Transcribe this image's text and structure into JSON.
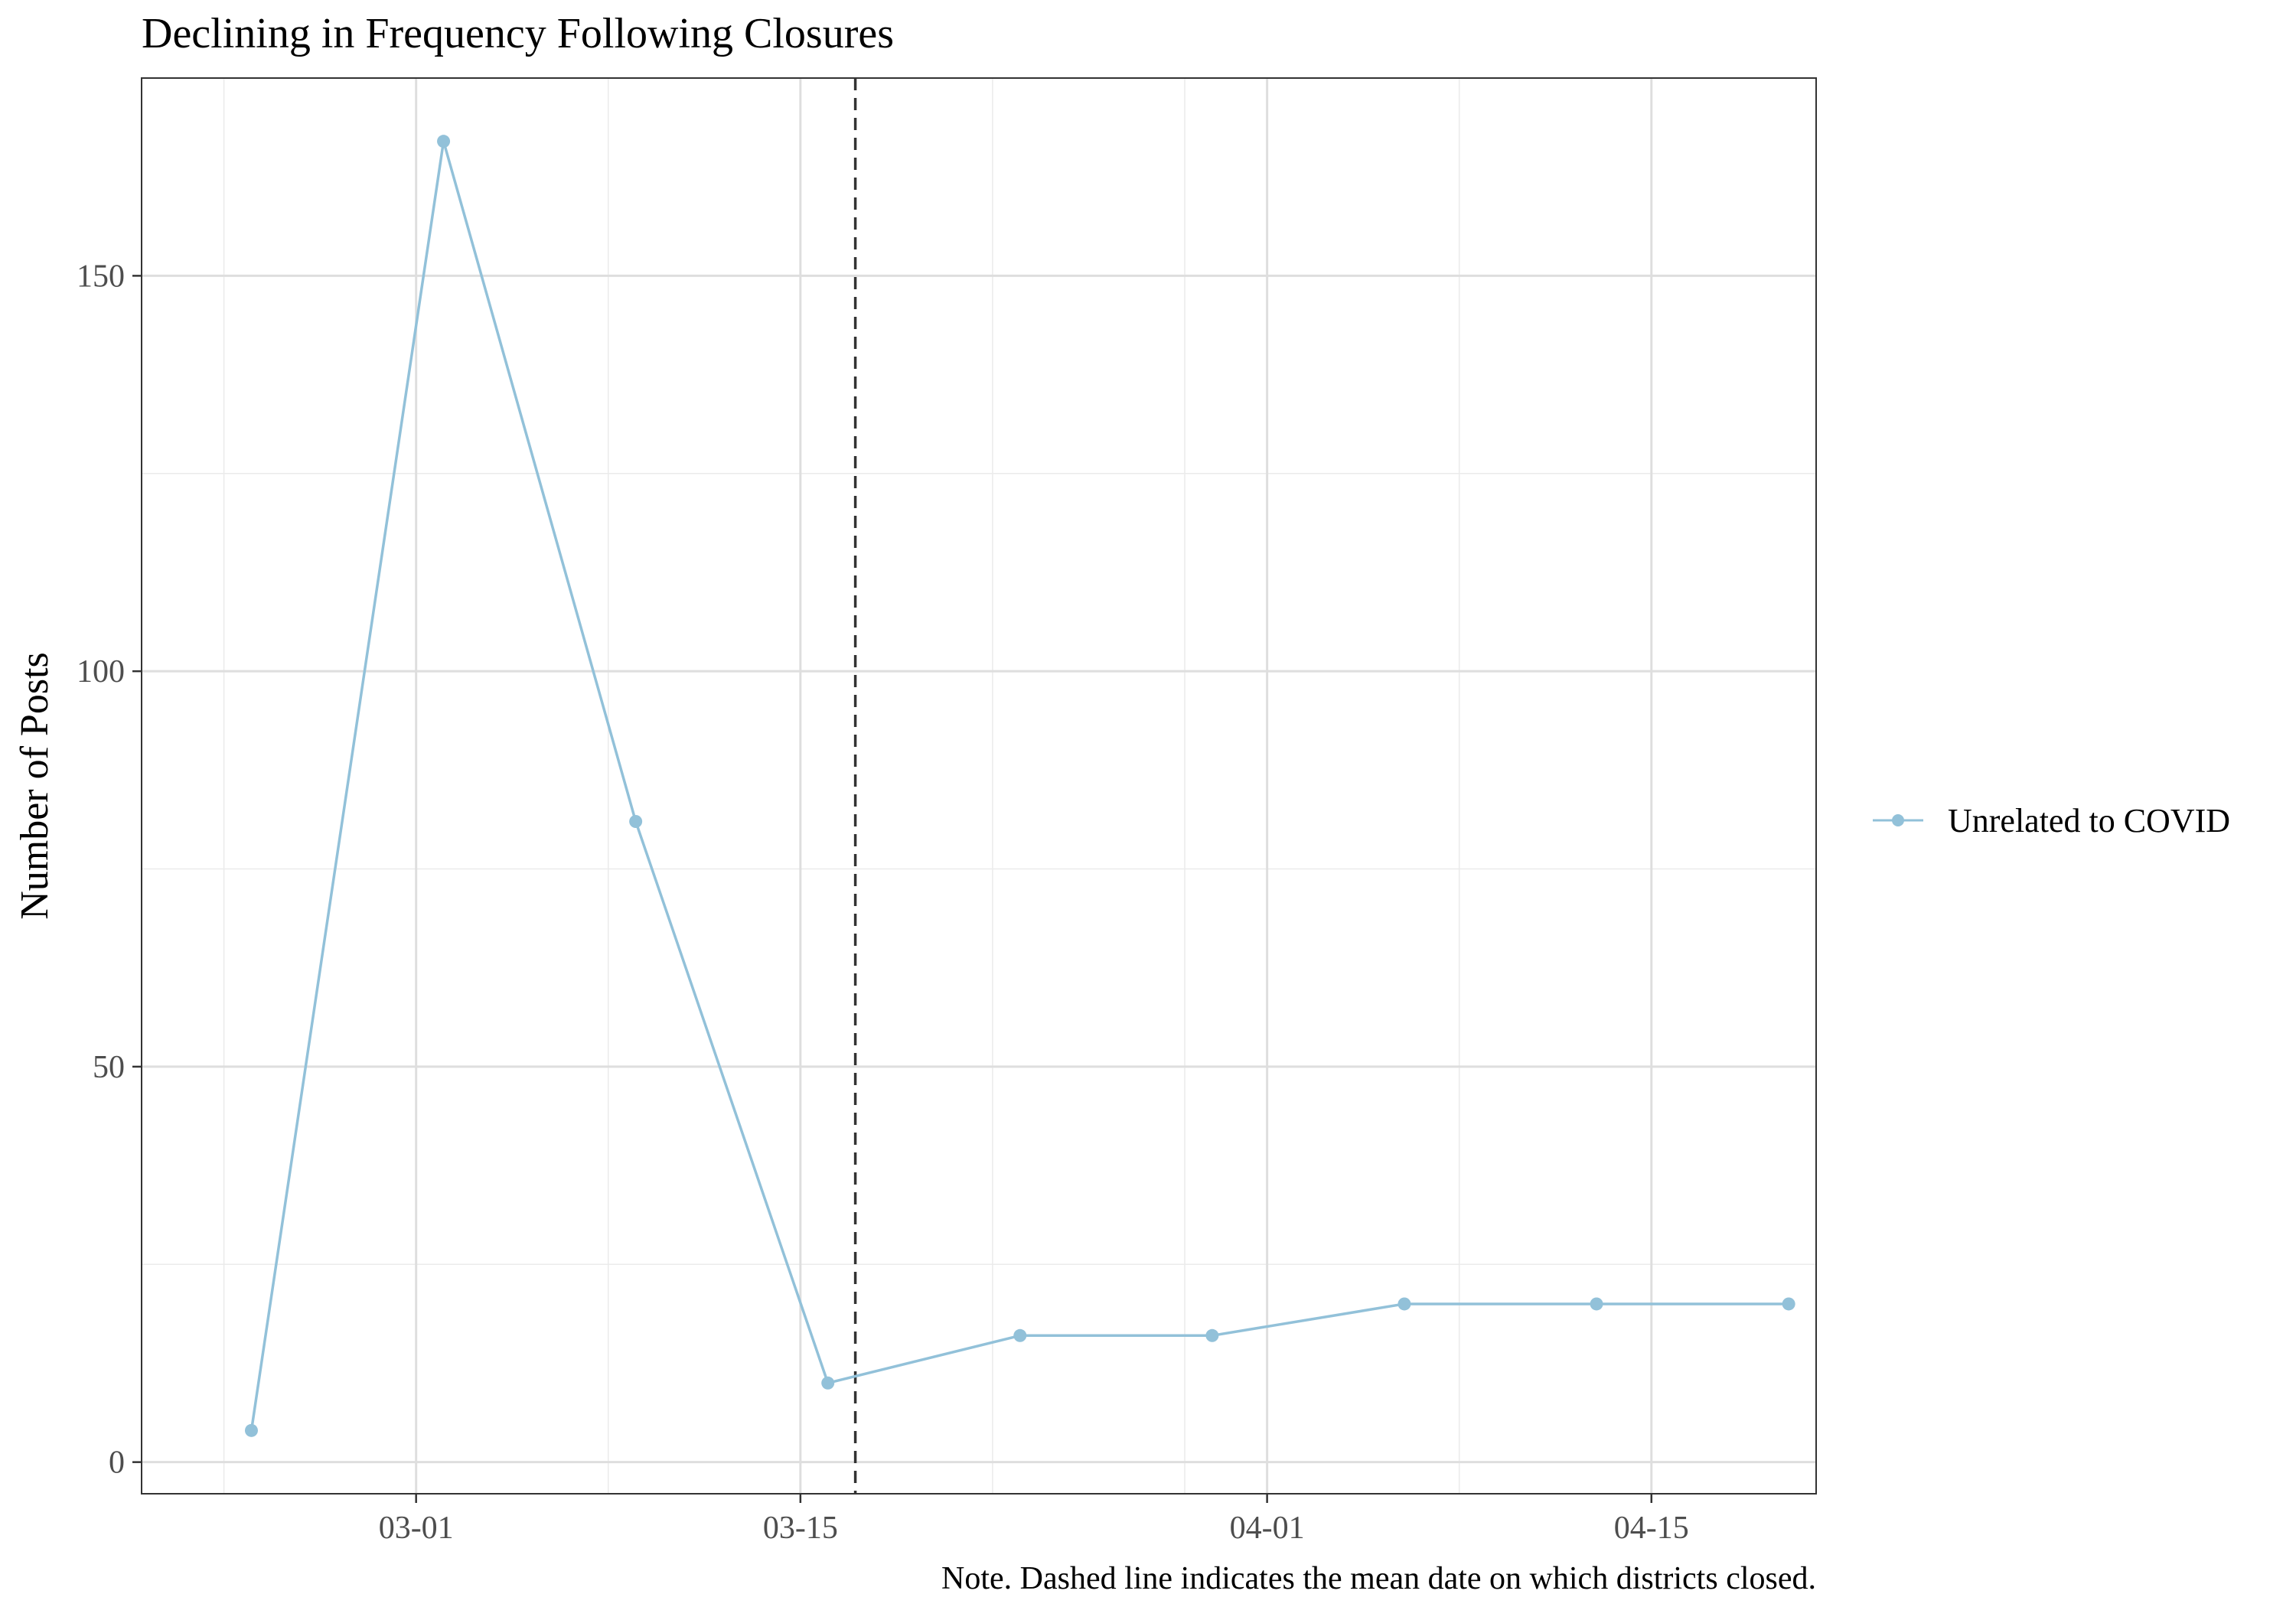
{
  "chart_data": {
    "type": "line",
    "title": "Declining in Frequency Following Closures",
    "xlabel": "",
    "ylabel": "Number of Posts",
    "note": "Note. Dashed line indicates the mean date on which districts closed.",
    "x_axis": {
      "type": "date",
      "year": 2020,
      "range": [
        "2020-02-20",
        "2020-04-21"
      ],
      "ticks": [
        "2020-03-01",
        "2020-03-15",
        "2020-04-01",
        "2020-04-15"
      ],
      "tick_labels": [
        "03-01",
        "03-15",
        "04-01",
        "04-15"
      ],
      "minor_ticks": [
        "2020-02-23",
        "2020-03-08",
        "2020-03-22",
        "2020-03-29",
        "2020-04-08"
      ]
    },
    "y_axis": {
      "range": [
        -4,
        175
      ],
      "ticks": [
        0,
        50,
        100,
        150
      ],
      "tick_labels": [
        "0",
        "50",
        "100",
        "150"
      ],
      "minor_ticks": [
        25,
        75,
        125
      ]
    },
    "grid": true,
    "legend_position": "right",
    "reference_line": {
      "x": "2020-03-17",
      "style": "dashed",
      "color": "#333333"
    },
    "series": [
      {
        "name": "Unrelated to COVID",
        "color": "#92c1d9",
        "x": [
          "2020-02-24",
          "2020-03-02",
          "2020-03-09",
          "2020-03-16",
          "2020-03-23",
          "2020-03-30",
          "2020-04-06",
          "2020-04-13",
          "2020-04-20"
        ],
        "y": [
          4,
          167,
          81,
          10,
          16,
          16,
          20,
          20,
          20
        ]
      }
    ]
  }
}
